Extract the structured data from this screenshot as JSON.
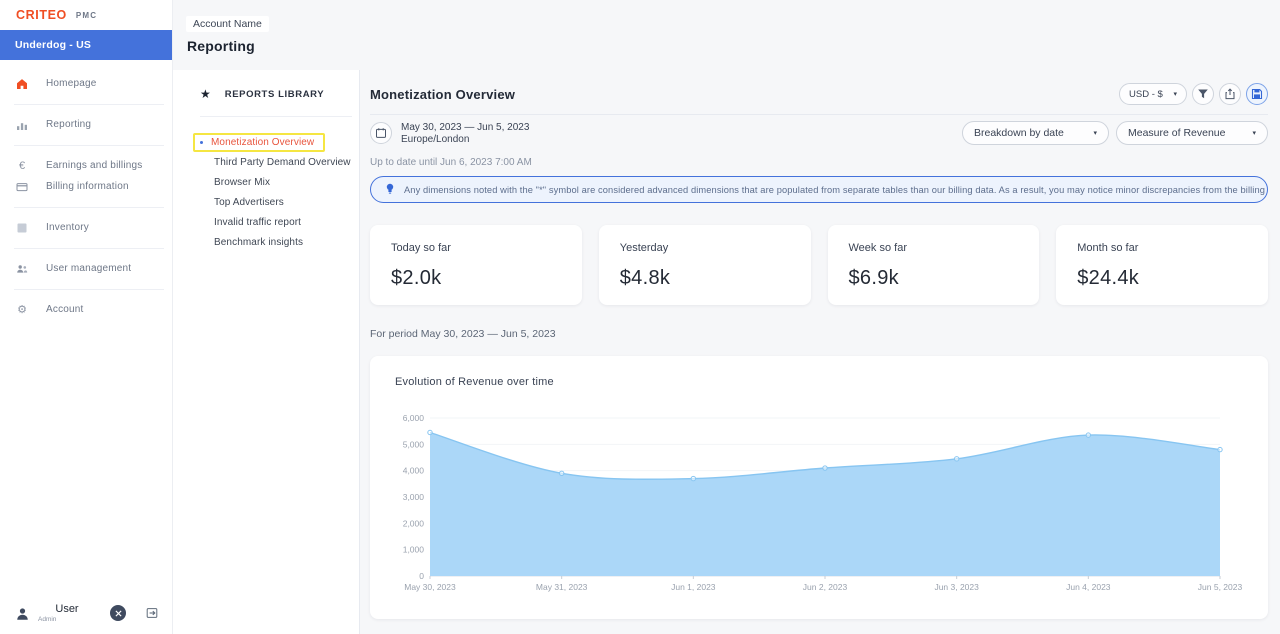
{
  "brand": {
    "logo": "CRITEO",
    "logo_sub": "PMC",
    "account": "Underdog - US"
  },
  "header": {
    "account_name": "Account Name",
    "page_title": "Reporting"
  },
  "sidebar": {
    "items": [
      {
        "label": "Homepage",
        "icon": "home-icon"
      },
      {
        "label": "Reporting",
        "icon": "bar-chart-icon"
      },
      {
        "label": "Earnings and billings",
        "icon": "euro-icon"
      },
      {
        "label": "Billing information",
        "icon": "credit-card-icon"
      },
      {
        "label": "Inventory",
        "icon": "inventory-icon"
      },
      {
        "label": "User management",
        "icon": "users-icon"
      },
      {
        "label": "Account",
        "icon": "gear-icon"
      }
    ],
    "user": {
      "name": "User",
      "role": "Admin"
    }
  },
  "library": {
    "title": "REPORTS LIBRARY",
    "items": [
      {
        "label": "Monetization Overview",
        "selected": true
      },
      {
        "label": "Third Party Demand Overview",
        "selected": false
      },
      {
        "label": "Browser Mix",
        "selected": false
      },
      {
        "label": "Top Advertisers",
        "selected": false
      },
      {
        "label": "Invalid traffic report",
        "selected": false
      },
      {
        "label": "Benchmark insights",
        "selected": false
      }
    ]
  },
  "report": {
    "title": "Monetization Overview",
    "currency_selector": "USD - $",
    "date_range": "May 30, 2023 — Jun 5, 2023",
    "timezone": "Europe/London",
    "breakdown_selector": "Breakdown by date",
    "measure_selector": "Measure of Revenue",
    "freshness": "Up to date until Jun 6, 2023 7:00 AM",
    "notice": "Any dimensions noted with the \"*\" symbol are considered advanced dimensions that are populated from separate tables than our billing data. As a result, you may notice minor discrepancies from the billing level data when using these dimensions.",
    "period_label": "For period May 30, 2023 — Jun 5, 2023"
  },
  "metrics": [
    {
      "label": "Today so far",
      "value": "$2.0k"
    },
    {
      "label": "Yesterday",
      "value": "$4.8k"
    },
    {
      "label": "Week so far",
      "value": "$6.9k"
    },
    {
      "label": "Month so far",
      "value": "$24.4k"
    }
  ],
  "chart_data": {
    "type": "area",
    "title": "Evolution of Revenue over time",
    "x": [
      "May 30, 2023",
      "May 31, 2023",
      "Jun 1, 2023",
      "Jun 2, 2023",
      "Jun 3, 2023",
      "Jun 4, 2023",
      "Jun 5, 2023"
    ],
    "series": [
      {
        "name": "Revenue",
        "values": [
          5450,
          3900,
          3700,
          4100,
          4450,
          5350,
          4800
        ]
      }
    ],
    "xlabel": "",
    "ylabel": "",
    "ylim": [
      0,
      6000
    ],
    "yticks": [
      0,
      1000,
      2000,
      3000,
      4000,
      5000,
      6000
    ],
    "grid": true,
    "legend": false,
    "area_color": "#abd7f8",
    "line_color": "#87c5f1"
  },
  "colors": {
    "accent_blue": "#4472db",
    "criteo_orange": "#f04e23",
    "selected_report_red": "#e8553e",
    "highlight_yellow": "#f5e642",
    "main_bg": "#f6f7f9",
    "banner_bg": "#edf3fd",
    "chart_area": "#abd7f8",
    "chart_line": "#87c5f1"
  }
}
